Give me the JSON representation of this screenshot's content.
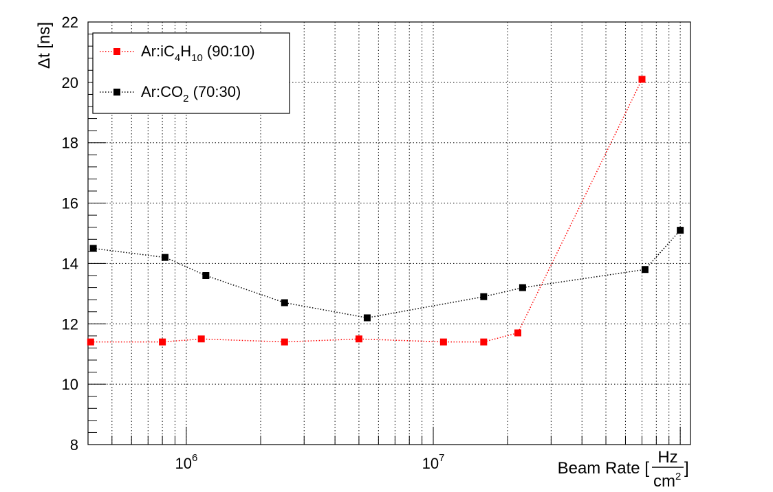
{
  "chart_data": {
    "type": "line",
    "x_scale": "log",
    "xlim": [
      400000,
      110000000
    ],
    "ylim": [
      8,
      22
    ],
    "y_ticks": [
      8,
      10,
      12,
      14,
      16,
      18,
      20,
      22
    ],
    "x_tick_labels": [
      {
        "value": 1000000,
        "base": "10",
        "exp": "6"
      },
      {
        "value": 10000000,
        "base": "10",
        "exp": "7"
      }
    ],
    "xlabel": {
      "text": "Beam Rate [",
      "frac_num": "Hz",
      "frac_den": "cm",
      "frac_den_exp": "2",
      "close": "]"
    },
    "ylabel": "Δt [ns]",
    "grid": true,
    "legend": {
      "position": "top-left"
    },
    "series": [
      {
        "name_parts": [
          "Ar:iC",
          "4",
          "H",
          "10",
          " (90:10)"
        ],
        "color": "#ff0000",
        "marker": "square",
        "line": "dotted",
        "points": [
          [
            410000,
            11.4
          ],
          [
            800000,
            11.4
          ],
          [
            1150000,
            11.5
          ],
          [
            2500000,
            11.4
          ],
          [
            5000000,
            11.5
          ],
          [
            11000000,
            11.4
          ],
          [
            16000000,
            11.4
          ],
          [
            22000000,
            11.7
          ],
          [
            70000000,
            20.1
          ]
        ]
      },
      {
        "name_parts": [
          "Ar:CO",
          "2",
          " (70:30)"
        ],
        "color": "#000000",
        "marker": "square",
        "line": "dotted",
        "points": [
          [
            420000,
            14.5
          ],
          [
            820000,
            14.2
          ],
          [
            1200000,
            13.6
          ],
          [
            2500000,
            12.7
          ],
          [
            5400000,
            12.2
          ],
          [
            16000000,
            12.9
          ],
          [
            23000000,
            13.2
          ],
          [
            72000000,
            13.8
          ],
          [
            100000000,
            15.1
          ]
        ]
      }
    ]
  }
}
